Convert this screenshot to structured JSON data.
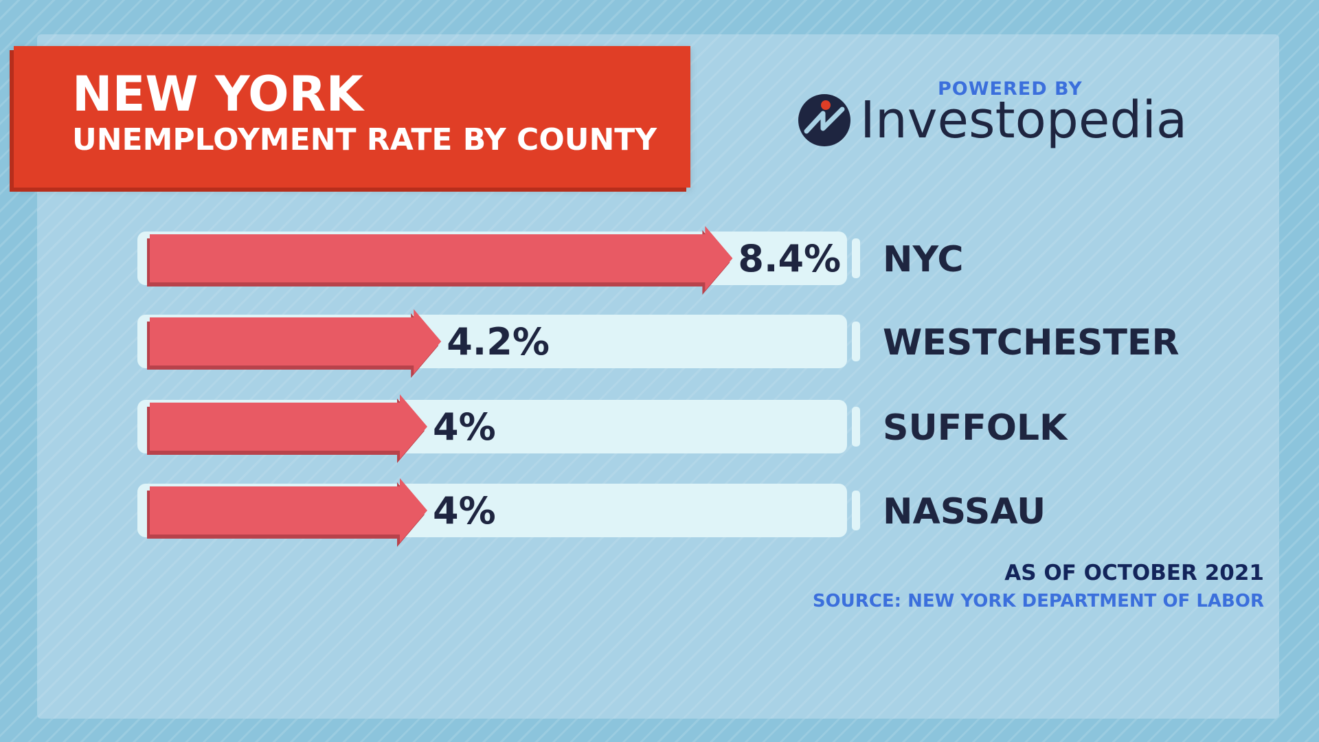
{
  "header": {
    "title": "NEW YORK",
    "subtitle": "UNEMPLOYMENT RATE BY COUNTY"
  },
  "branding": {
    "powered_by": "POWERED BY",
    "logo_text": "Investopedia",
    "logo_icon": "investopedia-logo-icon"
  },
  "footer": {
    "as_of": "AS OF OCTOBER 2021",
    "source": "SOURCE: NEW YORK DEPARTMENT OF LABOR"
  },
  "colors": {
    "title_banner": "#e03e26",
    "bar_fill": "#e85a64",
    "bar_track": "#dff4f8",
    "text_dark": "#1e2540",
    "accent_blue": "#3b6fdc"
  },
  "chart_data": {
    "type": "bar",
    "orientation": "horizontal",
    "categories": [
      "NYC",
      "WESTCHESTER",
      "SUFFOLK",
      "NASSAU"
    ],
    "values": [
      8.4,
      4.2,
      4,
      4
    ],
    "value_labels": [
      "8.4%",
      "4.2%",
      "4%",
      "4%"
    ],
    "title": "NEW YORK",
    "subtitle": "UNEMPLOYMENT RATE BY COUNTY",
    "xlabel": "",
    "ylabel": "",
    "xlim": [
      0,
      10
    ],
    "grid": false,
    "legend": "none"
  }
}
